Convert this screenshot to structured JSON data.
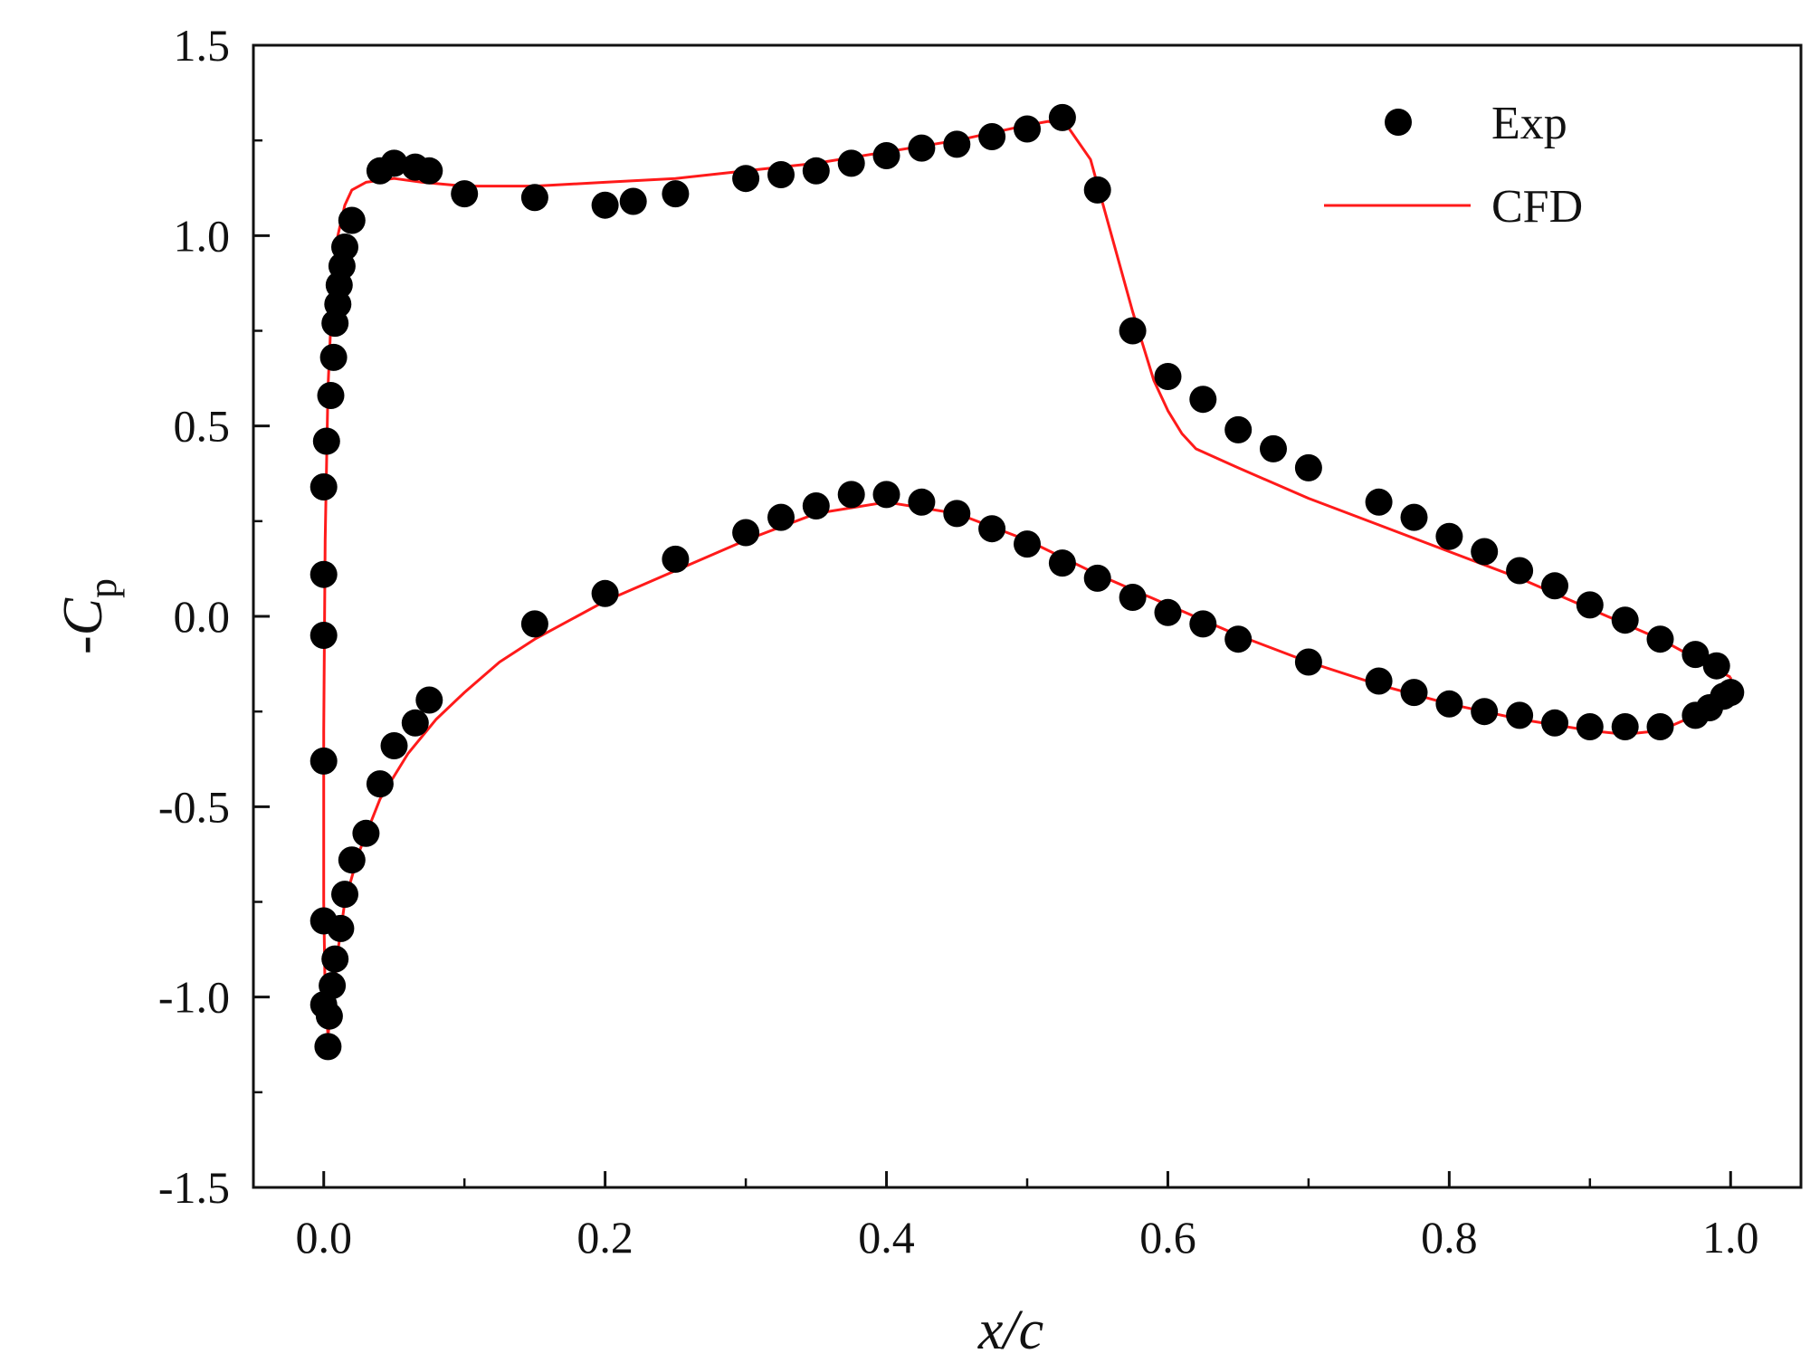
{
  "chart_data": {
    "type": "scatter",
    "title": "",
    "xlabel": "x/c",
    "ylabel": {
      "prefix": "-",
      "main": "C",
      "sub": "p"
    },
    "xlim": [
      -0.05,
      1.05
    ],
    "ylim": [
      -1.5,
      1.5
    ],
    "xticks": [
      {
        "value": 0.0,
        "label": "0.0"
      },
      {
        "value": 0.2,
        "label": "0.2"
      },
      {
        "value": 0.4,
        "label": "0.4"
      },
      {
        "value": 0.6,
        "label": "0.6"
      },
      {
        "value": 0.8,
        "label": "0.8"
      },
      {
        "value": 1.0,
        "label": "1.0"
      }
    ],
    "yticks": [
      {
        "value": 1.5,
        "label": "1.5"
      },
      {
        "value": 1.0,
        "label": "1.0"
      },
      {
        "value": 0.5,
        "label": "0.5"
      },
      {
        "value": 0.0,
        "label": "0.0"
      },
      {
        "value": -0.5,
        "label": "-0.5"
      },
      {
        "value": -1.0,
        "label": "-1.0"
      },
      {
        "value": -1.5,
        "label": "-1.5"
      }
    ],
    "grid": false,
    "legend_position": "top-right",
    "series": [
      {
        "name": "Exp",
        "kind": "scatter",
        "color": "#000000",
        "points": [
          [
            0.0,
            0.34
          ],
          [
            0.0,
            0.11
          ],
          [
            0.0,
            -0.05
          ],
          [
            0.0,
            -0.38
          ],
          [
            0.0,
            -0.8
          ],
          [
            0.0,
            -1.02
          ],
          [
            0.002,
            0.46
          ],
          [
            0.005,
            0.58
          ],
          [
            0.007,
            0.68
          ],
          [
            0.008,
            0.77
          ],
          [
            0.01,
            0.82
          ],
          [
            0.011,
            0.87
          ],
          [
            0.013,
            0.92
          ],
          [
            0.015,
            0.97
          ],
          [
            0.02,
            1.04
          ],
          [
            0.04,
            1.17
          ],
          [
            0.05,
            1.19
          ],
          [
            0.065,
            1.18
          ],
          [
            0.075,
            1.17
          ],
          [
            0.1,
            1.11
          ],
          [
            0.15,
            1.1
          ],
          [
            0.2,
            1.08
          ],
          [
            0.22,
            1.09
          ],
          [
            0.25,
            1.11
          ],
          [
            0.3,
            1.15
          ],
          [
            0.325,
            1.16
          ],
          [
            0.35,
            1.17
          ],
          [
            0.375,
            1.19
          ],
          [
            0.4,
            1.21
          ],
          [
            0.425,
            1.23
          ],
          [
            0.45,
            1.24
          ],
          [
            0.475,
            1.26
          ],
          [
            0.5,
            1.28
          ],
          [
            0.525,
            1.31
          ],
          [
            0.55,
            1.12
          ],
          [
            0.575,
            0.75
          ],
          [
            0.6,
            0.63
          ],
          [
            0.625,
            0.57
          ],
          [
            0.65,
            0.49
          ],
          [
            0.675,
            0.44
          ],
          [
            0.7,
            0.39
          ],
          [
            0.75,
            0.3
          ],
          [
            0.775,
            0.26
          ],
          [
            0.8,
            0.21
          ],
          [
            0.825,
            0.17
          ],
          [
            0.85,
            0.12
          ],
          [
            0.875,
            0.08
          ],
          [
            0.9,
            0.03
          ],
          [
            0.925,
            -0.01
          ],
          [
            0.95,
            -0.06
          ],
          [
            0.975,
            -0.1
          ],
          [
            0.99,
            -0.13
          ],
          [
            1.0,
            -0.2
          ],
          [
            0.003,
            -1.13
          ],
          [
            0.004,
            -1.05
          ],
          [
            0.006,
            -0.97
          ],
          [
            0.008,
            -0.9
          ],
          [
            0.012,
            -0.82
          ],
          [
            0.015,
            -0.73
          ],
          [
            0.02,
            -0.64
          ],
          [
            0.03,
            -0.57
          ],
          [
            0.04,
            -0.44
          ],
          [
            0.05,
            -0.34
          ],
          [
            0.065,
            -0.28
          ],
          [
            0.075,
            -0.22
          ],
          [
            0.15,
            -0.02
          ],
          [
            0.2,
            0.06
          ],
          [
            0.25,
            0.15
          ],
          [
            0.3,
            0.22
          ],
          [
            0.325,
            0.26
          ],
          [
            0.35,
            0.29
          ],
          [
            0.375,
            0.32
          ],
          [
            0.4,
            0.32
          ],
          [
            0.425,
            0.3
          ],
          [
            0.45,
            0.27
          ],
          [
            0.475,
            0.23
          ],
          [
            0.5,
            0.19
          ],
          [
            0.525,
            0.14
          ],
          [
            0.55,
            0.1
          ],
          [
            0.575,
            0.05
          ],
          [
            0.6,
            0.01
          ],
          [
            0.625,
            -0.02
          ],
          [
            0.65,
            -0.06
          ],
          [
            0.7,
            -0.12
          ],
          [
            0.75,
            -0.17
          ],
          [
            0.775,
            -0.2
          ],
          [
            0.8,
            -0.23
          ],
          [
            0.825,
            -0.25
          ],
          [
            0.85,
            -0.26
          ],
          [
            0.875,
            -0.28
          ],
          [
            0.9,
            -0.29
          ],
          [
            0.925,
            -0.29
          ],
          [
            0.95,
            -0.29
          ],
          [
            0.975,
            -0.26
          ],
          [
            0.985,
            -0.24
          ],
          [
            0.995,
            -0.21
          ]
        ]
      },
      {
        "name": "CFD",
        "kind": "line",
        "color": "#ff1a1a",
        "points": [
          [
            1.0,
            -0.16
          ],
          [
            0.95,
            -0.06
          ],
          [
            0.9,
            0.02
          ],
          [
            0.85,
            0.1
          ],
          [
            0.8,
            0.17
          ],
          [
            0.75,
            0.24
          ],
          [
            0.7,
            0.31
          ],
          [
            0.65,
            0.39
          ],
          [
            0.62,
            0.44
          ],
          [
            0.61,
            0.48
          ],
          [
            0.6,
            0.54
          ],
          [
            0.59,
            0.62
          ],
          [
            0.575,
            0.8
          ],
          [
            0.56,
            1.0
          ],
          [
            0.545,
            1.2
          ],
          [
            0.53,
            1.28
          ],
          [
            0.515,
            1.3
          ],
          [
            0.5,
            1.29
          ],
          [
            0.45,
            1.25
          ],
          [
            0.4,
            1.22
          ],
          [
            0.35,
            1.19
          ],
          [
            0.3,
            1.17
          ],
          [
            0.25,
            1.15
          ],
          [
            0.2,
            1.14
          ],
          [
            0.15,
            1.13
          ],
          [
            0.1,
            1.13
          ],
          [
            0.07,
            1.14
          ],
          [
            0.05,
            1.15
          ],
          [
            0.03,
            1.14
          ],
          [
            0.02,
            1.12
          ],
          [
            0.015,
            1.08
          ],
          [
            0.01,
            1.0
          ],
          [
            0.006,
            0.85
          ],
          [
            0.003,
            0.6
          ],
          [
            0.001,
            0.2
          ],
          [
            0.0,
            -0.3
          ],
          [
            0.0,
            -0.75
          ],
          [
            0.001,
            -1.0
          ],
          [
            0.003,
            -1.1
          ],
          [
            0.006,
            -1.02
          ],
          [
            0.01,
            -0.88
          ],
          [
            0.015,
            -0.75
          ],
          [
            0.025,
            -0.62
          ],
          [
            0.04,
            -0.48
          ],
          [
            0.06,
            -0.36
          ],
          [
            0.08,
            -0.27
          ],
          [
            0.1,
            -0.2
          ],
          [
            0.125,
            -0.12
          ],
          [
            0.15,
            -0.06
          ],
          [
            0.2,
            0.04
          ],
          [
            0.25,
            0.12
          ],
          [
            0.3,
            0.2
          ],
          [
            0.35,
            0.27
          ],
          [
            0.4,
            0.3
          ],
          [
            0.45,
            0.27
          ],
          [
            0.5,
            0.2
          ],
          [
            0.55,
            0.11
          ],
          [
            0.6,
            0.03
          ],
          [
            0.65,
            -0.05
          ],
          [
            0.7,
            -0.12
          ],
          [
            0.75,
            -0.18
          ],
          [
            0.8,
            -0.23
          ],
          [
            0.85,
            -0.27
          ],
          [
            0.9,
            -0.3
          ],
          [
            0.925,
            -0.31
          ],
          [
            0.95,
            -0.3
          ],
          [
            0.975,
            -0.26
          ],
          [
            0.99,
            -0.23
          ],
          [
            1.0,
            -0.2
          ],
          [
            1.0,
            -0.16
          ]
        ]
      }
    ]
  }
}
